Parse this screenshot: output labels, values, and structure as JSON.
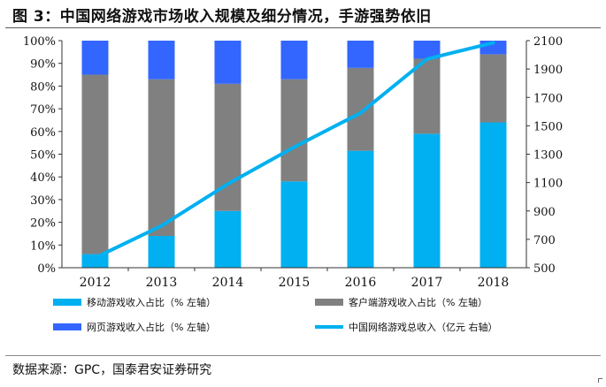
{
  "figure_title": "图 3：中国网络游戏市场收入规模及细分情况，手游强势依旧",
  "source": "数据来源：GPC，国泰君安证券研究",
  "colors": {
    "mobile": "#00b0f0",
    "client": "#808080",
    "web": "#3366ff",
    "total_line": "#00b0f0"
  },
  "chart_data": {
    "type": "bar",
    "stacked": true,
    "categories": [
      "2012",
      "2013",
      "2014",
      "2015",
      "2016",
      "2017",
      "2018"
    ],
    "series": [
      {
        "name": "移动游戏收入占比（% 左轴）",
        "axis": "left",
        "kind": "bar",
        "values": [
          6,
          14,
          25,
          38,
          51.5,
          59,
          64
        ]
      },
      {
        "name": "客户端游戏收入占比（% 左轴）",
        "axis": "left",
        "kind": "bar",
        "values": [
          79,
          69,
          56,
          45,
          36.5,
          33,
          30
        ]
      },
      {
        "name": "网页游戏收入占比（% 左轴）",
        "axis": "left",
        "kind": "bar",
        "values": [
          15,
          17,
          19,
          17,
          12,
          8,
          6
        ]
      },
      {
        "name": "中国网络游戏总收入（亿元 右轴）",
        "axis": "right",
        "kind": "line",
        "values": [
          570,
          795,
          1090,
          1350,
          1590,
          1970,
          2085
        ]
      }
    ],
    "left_axis": {
      "min": 0,
      "max": 100,
      "step": 10,
      "tick_labels": [
        "0%",
        "10%",
        "20%",
        "30%",
        "40%",
        "50%",
        "60%",
        "70%",
        "80%",
        "90%",
        "100%"
      ]
    },
    "right_axis": {
      "min": 500,
      "max": 2100,
      "step": 200,
      "tick_labels": [
        "500",
        "700",
        "900",
        "1100",
        "1300",
        "1500",
        "1700",
        "1900",
        "2100"
      ]
    },
    "title": "",
    "xlabel": "",
    "ylabel": "",
    "grid": false,
    "legend_position": "bottom"
  }
}
